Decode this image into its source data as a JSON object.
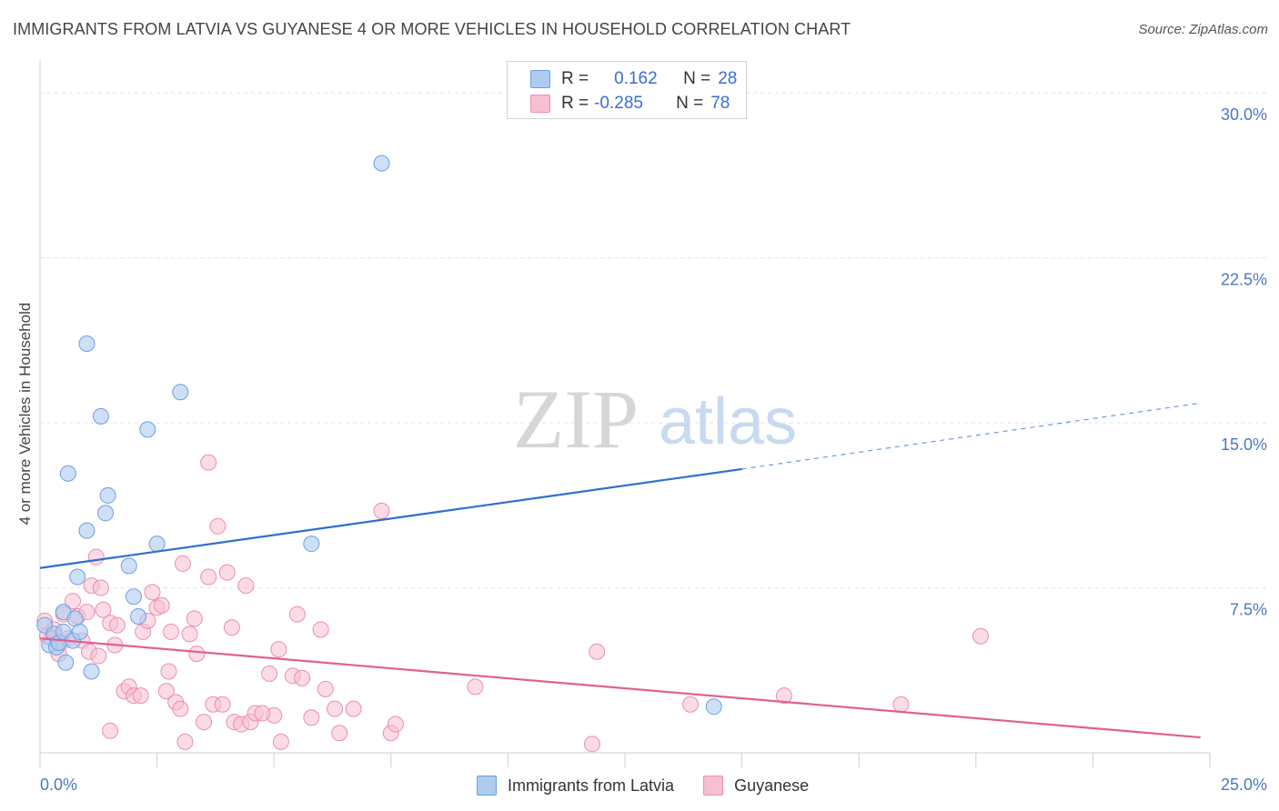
{
  "title": "IMMIGRANTS FROM LATVIA VS GUYANESE 4 OR MORE VEHICLES IN HOUSEHOLD CORRELATION CHART",
  "source": "Source: ZipAtlas.com",
  "watermark": {
    "zip": "ZIP",
    "atlas": "atlas"
  },
  "legend": {
    "rows": [
      {
        "r_label": "R =",
        "r_value": "0.162",
        "n_label": "N =",
        "n_value": "28"
      },
      {
        "r_label": "R =",
        "r_value": "-0.285",
        "n_label": "N =",
        "n_value": "78"
      }
    ]
  },
  "bottom_legend": {
    "series1": "Immigrants from Latvia",
    "series2": "Guyanese"
  },
  "colors": {
    "latvia_fill": "#aecbf0",
    "latvia_stroke": "#6f9ee0",
    "latvia_line": "#2f6fd0",
    "guyanese_fill": "#f7bfd2",
    "guyanese_stroke": "#ec8db0",
    "guyanese_line": "#e0608f",
    "tick_text": "#4a78c2",
    "grid": "#e4e4e4"
  },
  "chart_data": {
    "type": "scatter",
    "title": "IMMIGRANTS FROM LATVIA VS GUYANESE 4 OR MORE VEHICLES IN HOUSEHOLD CORRELATION CHART",
    "xlabel": "",
    "ylabel": "4 or more Vehicles in Household",
    "xlim": [
      0,
      25
    ],
    "ylim": [
      0,
      31
    ],
    "x_tick_labels": [
      "0.0%",
      "25.0%"
    ],
    "y_ticks": [
      7.5,
      15.0,
      22.5,
      30.0
    ],
    "y_tick_labels": [
      "7.5%",
      "15.0%",
      "22.5%",
      "30.0%"
    ],
    "series": [
      {
        "name": "Immigrants from Latvia",
        "r": 0.162,
        "n": 28,
        "trend": {
          "x0": 0,
          "y0": 8.4,
          "x1": 15,
          "y1": 12.9,
          "dash_x1": 24.8,
          "dash_y1": 15.9
        },
        "points": [
          [
            0.1,
            5.8
          ],
          [
            0.2,
            4.9
          ],
          [
            0.3,
            5.4
          ],
          [
            0.35,
            4.8
          ],
          [
            0.4,
            5.0
          ],
          [
            0.5,
            5.5
          ],
          [
            0.5,
            6.4
          ],
          [
            0.55,
            4.1
          ],
          [
            0.6,
            12.7
          ],
          [
            0.7,
            5.1
          ],
          [
            0.75,
            6.1
          ],
          [
            0.8,
            8.0
          ],
          [
            0.85,
            5.5
          ],
          [
            1.0,
            18.6
          ],
          [
            1.0,
            10.1
          ],
          [
            1.1,
            3.7
          ],
          [
            1.3,
            15.3
          ],
          [
            1.4,
            10.9
          ],
          [
            1.45,
            11.7
          ],
          [
            1.9,
            8.5
          ],
          [
            2.0,
            7.1
          ],
          [
            2.1,
            6.2
          ],
          [
            2.3,
            14.7
          ],
          [
            2.5,
            9.5
          ],
          [
            3.0,
            16.4
          ],
          [
            5.8,
            9.5
          ],
          [
            7.3,
            26.8
          ],
          [
            14.4,
            2.1
          ]
        ]
      },
      {
        "name": "Guyanese",
        "r": -0.285,
        "n": 78,
        "trend": {
          "x0": 0,
          "y0": 5.2,
          "x1": 24.8,
          "y1": 0.7
        },
        "points": [
          [
            0.1,
            6.0
          ],
          [
            0.15,
            5.3
          ],
          [
            0.3,
            5.6
          ],
          [
            0.4,
            4.5
          ],
          [
            0.5,
            6.3
          ],
          [
            0.6,
            5.2
          ],
          [
            0.7,
            6.9
          ],
          [
            0.8,
            6.2
          ],
          [
            0.9,
            5.1
          ],
          [
            1.0,
            6.4
          ],
          [
            1.05,
            4.6
          ],
          [
            1.1,
            7.6
          ],
          [
            1.2,
            8.9
          ],
          [
            1.3,
            7.5
          ],
          [
            1.35,
            6.5
          ],
          [
            1.5,
            1.0
          ],
          [
            1.5,
            5.9
          ],
          [
            1.6,
            4.9
          ],
          [
            1.65,
            5.8
          ],
          [
            1.8,
            2.8
          ],
          [
            1.9,
            3.0
          ],
          [
            2.0,
            2.6
          ],
          [
            2.2,
            5.5
          ],
          [
            2.3,
            6.0
          ],
          [
            2.4,
            7.3
          ],
          [
            2.5,
            6.6
          ],
          [
            2.6,
            6.7
          ],
          [
            2.7,
            2.8
          ],
          [
            2.75,
            3.7
          ],
          [
            2.8,
            5.5
          ],
          [
            2.9,
            2.3
          ],
          [
            3.0,
            2.0
          ],
          [
            3.05,
            8.6
          ],
          [
            3.1,
            0.5
          ],
          [
            3.2,
            5.4
          ],
          [
            3.3,
            6.1
          ],
          [
            3.35,
            4.5
          ],
          [
            3.5,
            1.4
          ],
          [
            3.6,
            13.2
          ],
          [
            3.6,
            8.0
          ],
          [
            3.7,
            2.2
          ],
          [
            3.8,
            10.3
          ],
          [
            3.9,
            2.2
          ],
          [
            4.0,
            8.2
          ],
          [
            4.1,
            5.7
          ],
          [
            4.15,
            1.4
          ],
          [
            4.3,
            1.3
          ],
          [
            4.4,
            7.6
          ],
          [
            4.5,
            1.4
          ],
          [
            4.6,
            1.8
          ],
          [
            4.9,
            3.6
          ],
          [
            5.0,
            1.7
          ],
          [
            5.1,
            4.7
          ],
          [
            5.15,
            0.5
          ],
          [
            5.4,
            3.5
          ],
          [
            5.5,
            6.3
          ],
          [
            5.6,
            3.4
          ],
          [
            5.8,
            1.6
          ],
          [
            6.0,
            5.6
          ],
          [
            6.1,
            2.9
          ],
          [
            6.3,
            2.0
          ],
          [
            6.4,
            0.9
          ],
          [
            6.7,
            2.0
          ],
          [
            7.3,
            11.0
          ],
          [
            7.5,
            0.9
          ],
          [
            7.6,
            1.3
          ],
          [
            9.3,
            3.0
          ],
          [
            11.8,
            0.4
          ],
          [
            11.9,
            4.6
          ],
          [
            13.9,
            2.2
          ],
          [
            15.9,
            2.6
          ],
          [
            18.4,
            2.2
          ],
          [
            20.1,
            5.3
          ],
          [
            0.25,
            5.2
          ],
          [
            0.45,
            5.0
          ],
          [
            1.25,
            4.4
          ],
          [
            2.15,
            2.6
          ],
          [
            4.75,
            1.8
          ]
        ]
      }
    ]
  }
}
